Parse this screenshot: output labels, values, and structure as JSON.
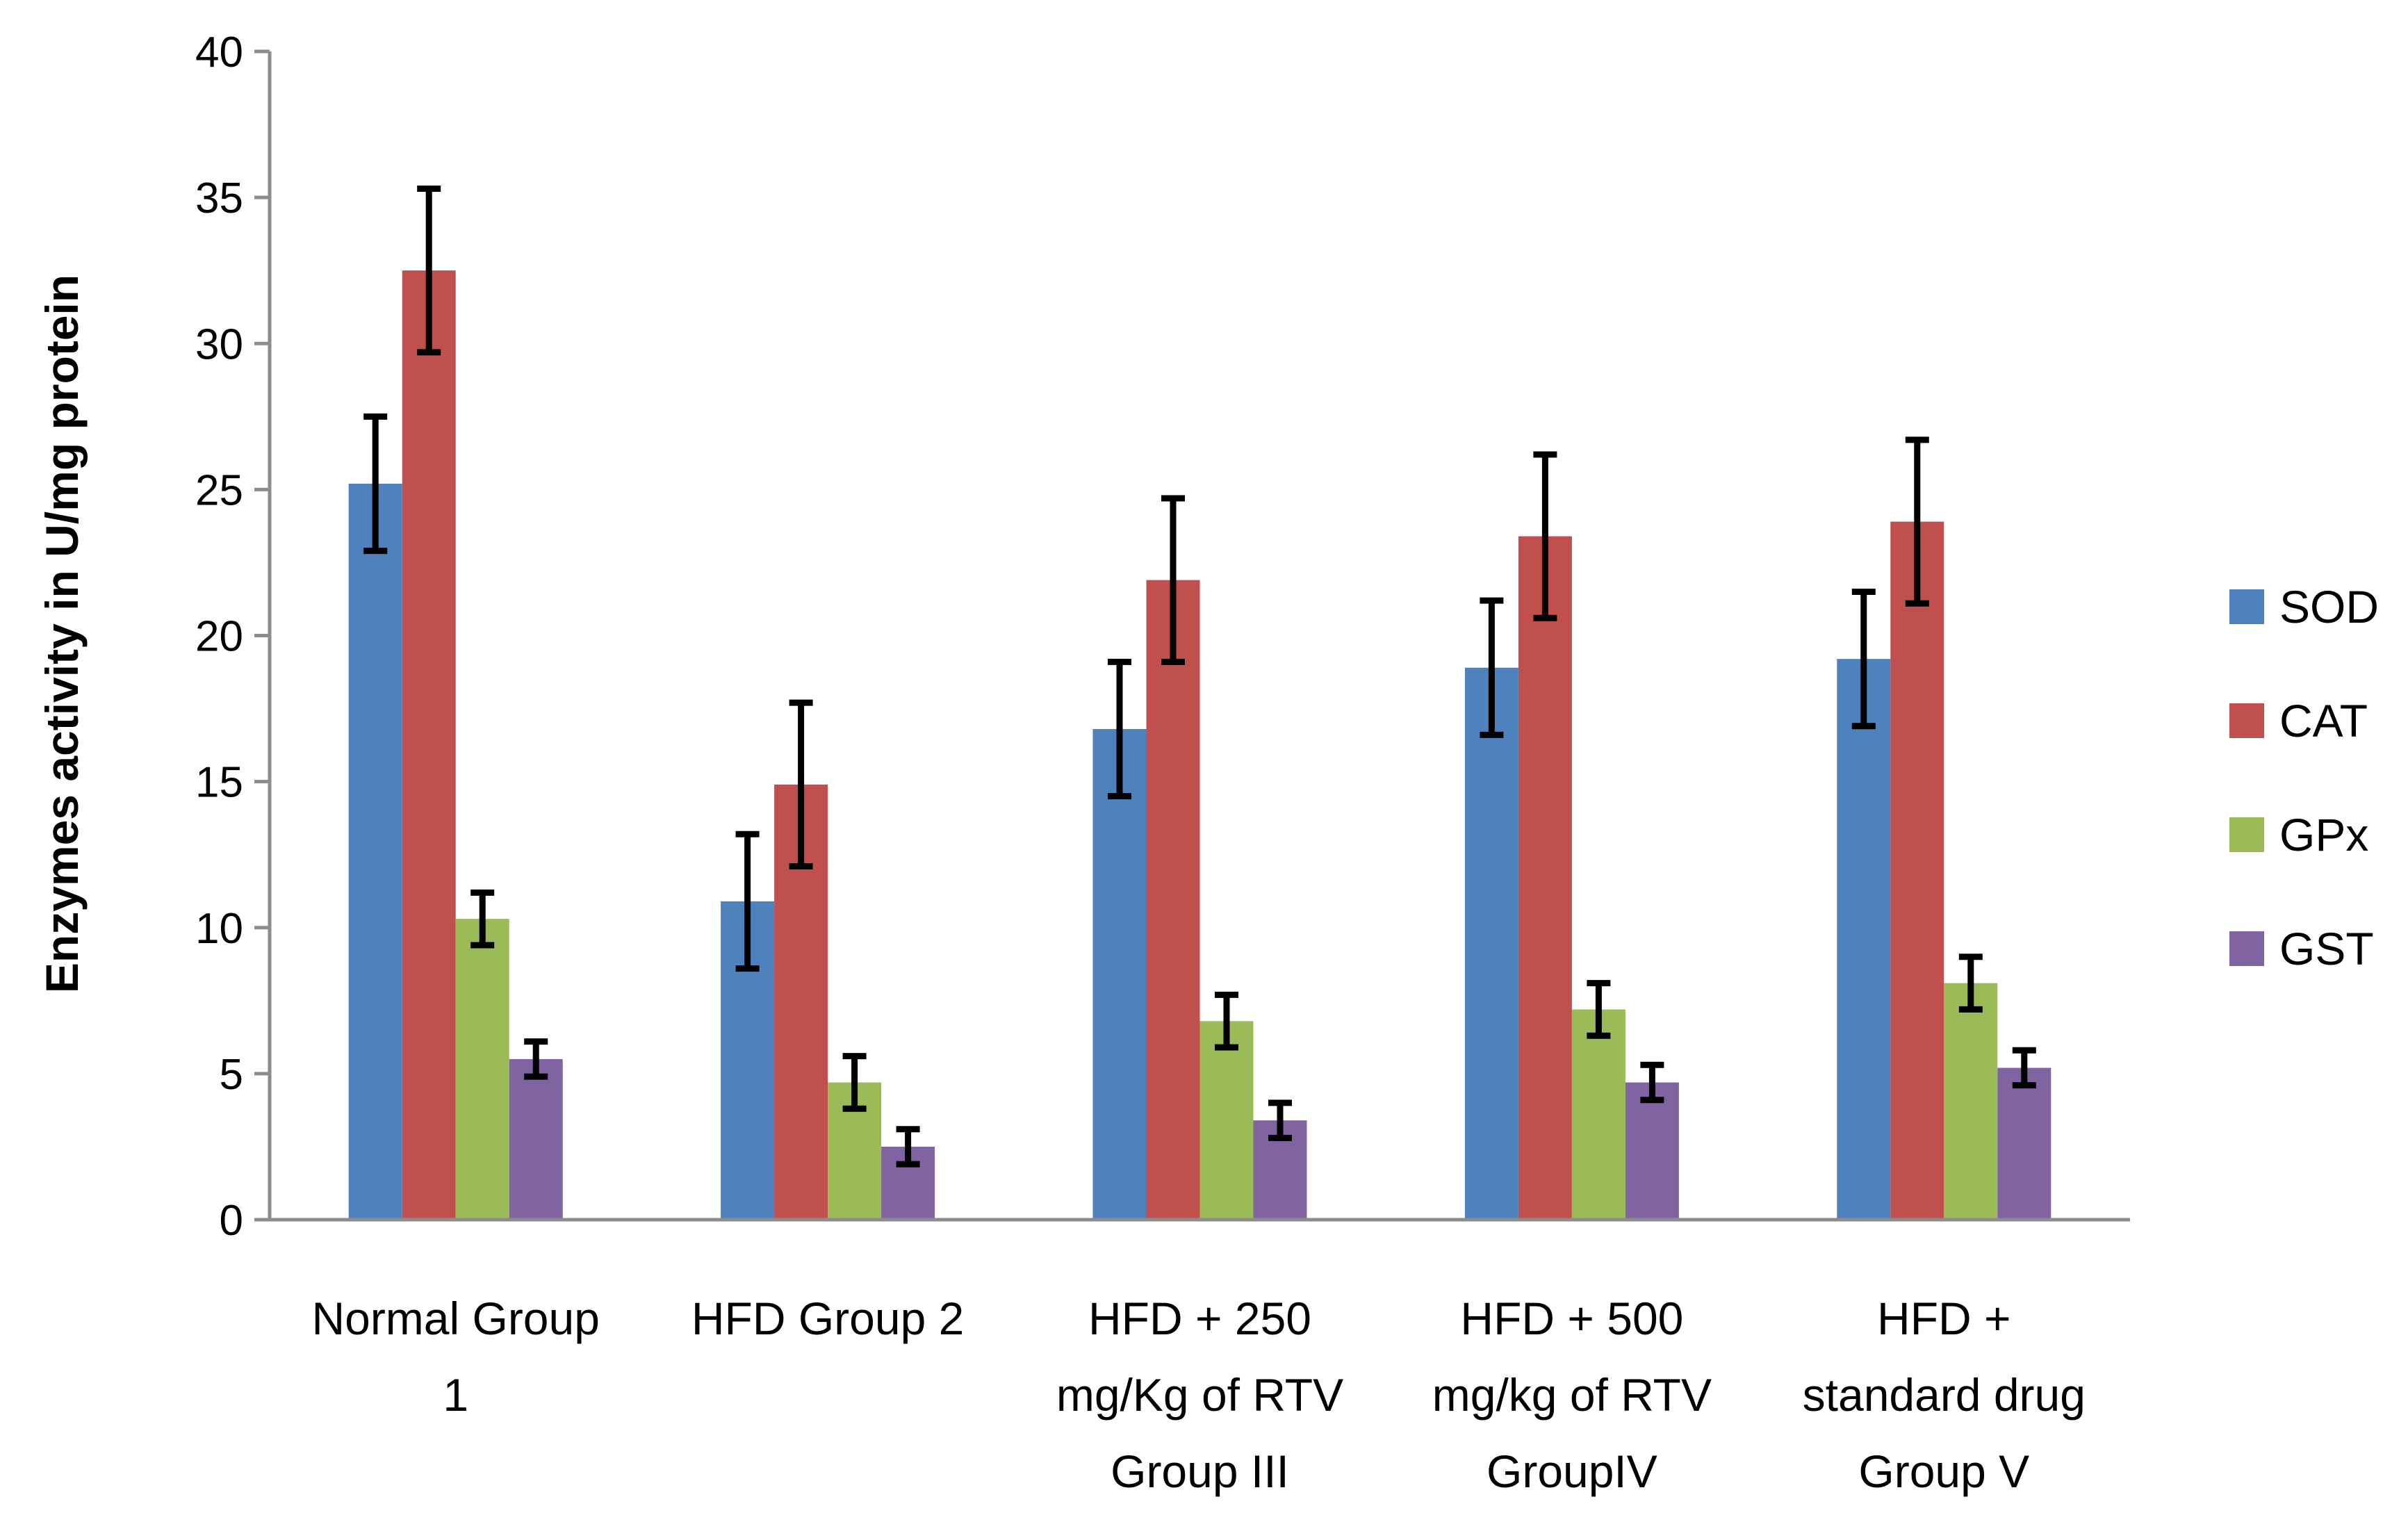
{
  "chart_data": {
    "type": "bar",
    "title": "",
    "xlabel": "",
    "ylabel": "Enzymes activity in U/mg protein",
    "ylim": [
      0,
      40
    ],
    "yticks": [
      "0",
      "5",
      "10",
      "15",
      "20",
      "25",
      "30",
      "35",
      "40"
    ],
    "grid": false,
    "legend_position": "right",
    "categories": [
      [
        "Normal Group",
        "1"
      ],
      [
        "HFD Group 2"
      ],
      [
        "HFD + 250",
        "mg/Kg of RTV",
        "Group III"
      ],
      [
        "HFD + 500",
        "mg/kg of RTV",
        "GroupIV"
      ],
      [
        "HFD +",
        "standard drug",
        "Group V"
      ]
    ],
    "series": [
      {
        "name": "SOD",
        "color": "#4f81bd",
        "values": [
          25.2,
          10.9,
          16.8,
          18.9,
          19.2
        ],
        "errors": [
          2.3,
          2.3,
          2.3,
          2.3,
          2.3
        ]
      },
      {
        "name": "CAT",
        "color": "#c0504d",
        "values": [
          32.5,
          14.9,
          21.9,
          23.4,
          23.9
        ],
        "errors": [
          2.8,
          2.8,
          2.8,
          2.8,
          2.8
        ]
      },
      {
        "name": "GPx",
        "color": "#9bbb59",
        "values": [
          10.3,
          4.7,
          6.8,
          7.2,
          8.1
        ],
        "errors": [
          0.9,
          0.9,
          0.9,
          0.9,
          0.9
        ]
      },
      {
        "name": "GST",
        "color": "#8064a2",
        "values": [
          5.5,
          2.5,
          3.4,
          4.7,
          5.2
        ],
        "errors": [
          0.6,
          0.6,
          0.6,
          0.6,
          0.6
        ]
      }
    ]
  }
}
